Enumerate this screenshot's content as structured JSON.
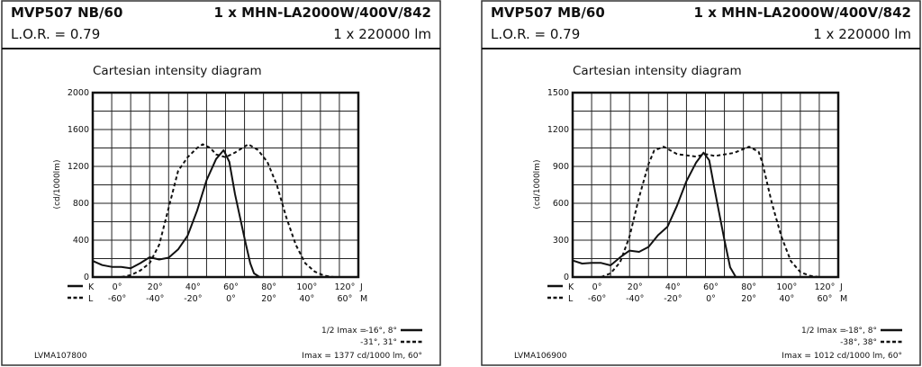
{
  "chart_data": [
    {
      "type": "line",
      "product": "MVP507 NB/60",
      "lamp": "1 x MHN-LA2000W/400V/842",
      "lor": "L.O.R. = 0.79",
      "flux": "1 x 220000 lm",
      "title": "Cartesian intensity diagram",
      "ylabel": "(cd/1000lm)",
      "ylim": [
        0,
        2000
      ],
      "yticks": [
        "0",
        "400",
        "800",
        "1200",
        "1600",
        "2000"
      ],
      "xlim": [
        -10,
        130
      ],
      "grid": true,
      "x_rows": [
        {
          "name": "K",
          "style": "solid",
          "ticks": [
            "0°",
            "20°",
            "40°",
            "60°",
            "80°",
            "100°",
            "120°"
          ],
          "end": "J"
        },
        {
          "name": "L",
          "style": "dashed",
          "ticks": [
            "-60°",
            "-40°",
            "-20°",
            "0°",
            "20°",
            "40°",
            "60°"
          ],
          "end": "M"
        }
      ],
      "series": [
        {
          "name": "K",
          "style": "solid",
          "x": [
            -10,
            -5,
            0,
            5,
            10,
            15,
            20,
            25,
            30,
            35,
            40,
            45,
            50,
            55,
            59,
            62,
            65,
            70,
            73,
            75,
            78
          ],
          "y": [
            175,
            130,
            110,
            110,
            95,
            150,
            215,
            190,
            210,
            300,
            450,
            720,
            1050,
            1280,
            1377,
            1250,
            900,
            420,
            150,
            40,
            0
          ]
        },
        {
          "name": "L",
          "style": "dashed",
          "x": [
            5,
            10,
            15,
            20,
            25,
            30,
            35,
            40,
            45,
            48,
            52,
            55,
            60,
            65,
            72,
            77,
            82,
            87,
            92,
            97,
            102,
            107,
            112,
            117
          ],
          "y": [
            0,
            20,
            70,
            150,
            350,
            750,
            1150,
            1300,
            1400,
            1440,
            1400,
            1330,
            1300,
            1350,
            1440,
            1380,
            1250,
            1000,
            650,
            350,
            150,
            60,
            15,
            0
          ]
        }
      ],
      "half_imax_label": "1/2 Imax =",
      "half_imax_solid": "-16°,   8°",
      "half_imax_dashed": "-31°,  31°",
      "imax": "Imax = 1377 cd/1000 lm, 60°",
      "code": "LVMA107800"
    },
    {
      "type": "line",
      "product": "MVP507 MB/60",
      "lamp": "1 x MHN-LA2000W/400V/842",
      "lor": "L.O.R. = 0.79",
      "flux": "1 x 220000 lm",
      "title": "Cartesian intensity diagram",
      "ylabel": "(cd/1000lm)",
      "ylim": [
        0,
        1500
      ],
      "yticks": [
        "0",
        "300",
        "600",
        "900",
        "1200",
        "1500"
      ],
      "xlim": [
        -10,
        130
      ],
      "grid": true,
      "x_rows": [
        {
          "name": "K",
          "style": "solid",
          "ticks": [
            "0°",
            "20°",
            "40°",
            "60°",
            "80°",
            "100°",
            "120°"
          ],
          "end": "J"
        },
        {
          "name": "L",
          "style": "dashed",
          "ticks": [
            "-60°",
            "-40°",
            "-20°",
            "0°",
            "20°",
            "40°",
            "60°"
          ],
          "end": "M"
        }
      ],
      "series": [
        {
          "name": "K",
          "style": "solid",
          "x": [
            -10,
            -5,
            0,
            5,
            10,
            15,
            20,
            25,
            30,
            35,
            40,
            45,
            50,
            55,
            59,
            62,
            65,
            70,
            73,
            76
          ],
          "y": [
            135,
            110,
            115,
            115,
            95,
            160,
            215,
            205,
            245,
            340,
            410,
            580,
            780,
            930,
            1012,
            950,
            700,
            300,
            80,
            0
          ]
        },
        {
          "name": "L",
          "style": "dashed",
          "x": [
            5,
            10,
            15,
            20,
            25,
            30,
            33,
            38,
            45,
            55,
            60,
            65,
            75,
            83,
            88,
            90,
            95,
            100,
            105,
            110,
            115,
            120
          ],
          "y": [
            0,
            30,
            120,
            330,
            650,
            920,
            1030,
            1060,
            1000,
            980,
            1000,
            985,
            1010,
            1060,
            1020,
            930,
            600,
            330,
            130,
            40,
            10,
            0
          ]
        }
      ],
      "half_imax_label": "1/2 Imax =",
      "half_imax_solid": "-18°,   8°",
      "half_imax_dashed": "-38°,  38°",
      "imax": "Imax = 1012 cd/1000 lm, 60°",
      "code": "LVMA106900"
    }
  ]
}
